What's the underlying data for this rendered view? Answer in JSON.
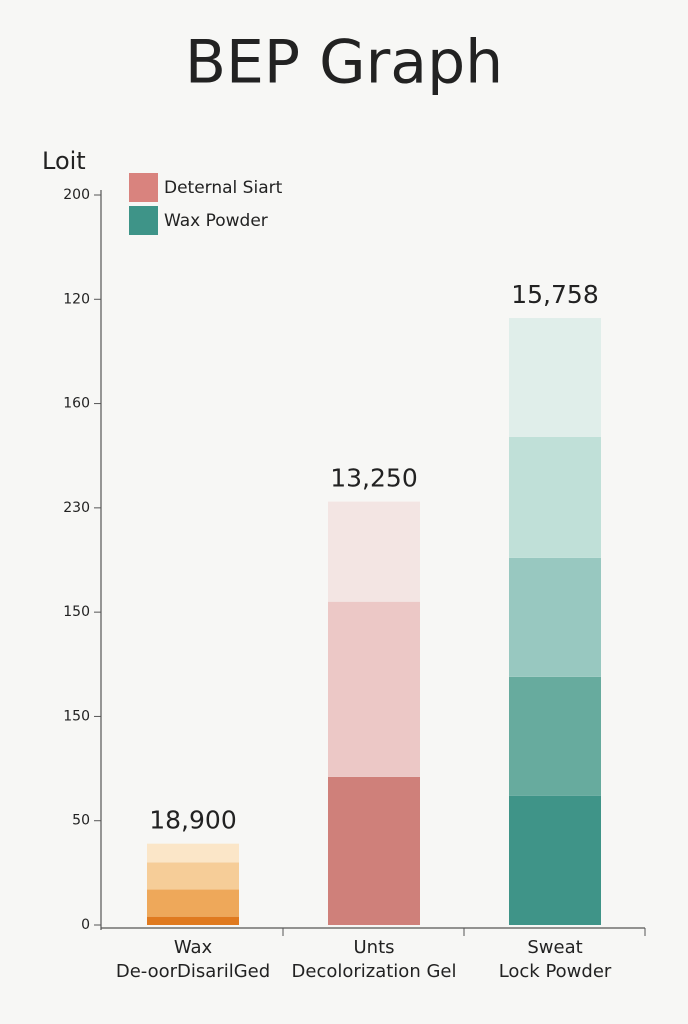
{
  "chart_data": {
    "type": "stacked_bar",
    "title": "BEP Graph",
    "ylabel": "Loit",
    "legend": [
      {
        "name": "Deternal Siart",
        "color": "#d9837e"
      },
      {
        "name": "Wax Powder",
        "color": "#3e9488"
      }
    ],
    "categories": [
      [
        "Wax",
        "De-oorDisarilGed"
      ],
      [
        "Unts",
        "Decolorization Gel"
      ],
      [
        "Sweat",
        "Lock Powder"
      ]
    ],
    "total_labels": [
      "18,900",
      "13,250",
      "15,758"
    ],
    "stacks": [
      [
        {
          "value": 4,
          "color": "#e07a1f"
        },
        {
          "value": 13,
          "color": "#eea85a"
        },
        {
          "value": 13,
          "color": "#f6cd98"
        },
        {
          "value": 9,
          "color": "#fbe6c8"
        }
      ],
      [
        {
          "value": 71,
          "color": "#cf807a"
        },
        {
          "value": 84,
          "color": "#ecc8c6"
        },
        {
          "value": 48,
          "color": "#f3e5e3"
        }
      ],
      [
        {
          "value": 62,
          "color": "#3f9488"
        },
        {
          "value": 57,
          "color": "#67ab9e"
        },
        {
          "value": 57,
          "color": "#98c8c0"
        },
        {
          "value": 58,
          "color": "#c0e0d8"
        },
        {
          "value": 57,
          "color": "#e0eeea"
        }
      ]
    ],
    "ylim": [
      0,
      350
    ],
    "yticks": [
      0,
      50,
      {
        "value": 100,
        "label": "150"
      },
      {
        "value": 150,
        "label": "150"
      },
      {
        "value": 200,
        "label": "230"
      },
      {
        "value": 250,
        "label": "160"
      },
      {
        "value": 300,
        "label": "120"
      },
      {
        "value": 350,
        "label": "200"
      }
    ]
  }
}
